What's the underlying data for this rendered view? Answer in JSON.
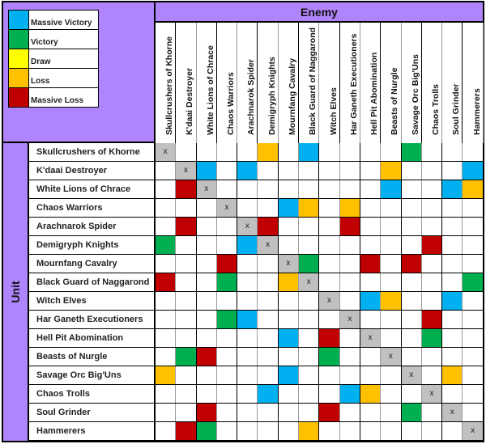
{
  "legend": [
    {
      "label": "Massive Victory",
      "color": "#00b0f0",
      "key": "MV"
    },
    {
      "label": "Victory",
      "color": "#00b050",
      "key": "V"
    },
    {
      "label": "Draw",
      "color": "#ffff00",
      "key": "D"
    },
    {
      "label": "Loss",
      "color": "#ffc000",
      "key": "L"
    },
    {
      "label": "Massive Loss",
      "color": "#c00000",
      "key": "ML"
    }
  ],
  "colors": {
    "header_bg": "#b084fc",
    "self_bg": "#c0c0c0",
    "empty_bg": "#ffffff"
  },
  "enemy_title": "Enemy",
  "unit_title": "Unit",
  "self_mark": "x",
  "units": [
    "Skullcrushers of Khorne",
    "K'daai Destroyer",
    "White Lions of Chrace",
    "Chaos Warriors",
    "Arachnarok Spider",
    "Demigryph Knights",
    "Mournfang Cavalry",
    "Black Guard of Naggarond",
    "Witch Elves",
    "Har Ganeth Executioners",
    "Hell Pit Abomination",
    "Beasts of Nurgle",
    "Savage Orc Big'Uns",
    "Chaos Trolls",
    "Soul Grinder",
    "Hammerers"
  ],
  "matrix": [
    [
      "X",
      "",
      "",
      "",
      "",
      "L",
      "",
      "MV",
      "",
      "",
      "",
      "",
      "V",
      "",
      "",
      ""
    ],
    [
      "",
      "X",
      "MV",
      "",
      "MV",
      "",
      "",
      "",
      "",
      "",
      "",
      "L",
      "",
      "",
      "",
      "MV"
    ],
    [
      "",
      "ML",
      "X",
      "",
      "",
      "",
      "",
      "",
      "",
      "",
      "",
      "MV",
      "",
      "",
      "MV",
      "L"
    ],
    [
      "",
      "",
      "",
      "X",
      "",
      "",
      "MV",
      "L",
      "",
      "L",
      "",
      "",
      "",
      "",
      "",
      ""
    ],
    [
      "",
      "ML",
      "",
      "",
      "X",
      "ML",
      "",
      "",
      "",
      "ML",
      "",
      "",
      "",
      "",
      "",
      ""
    ],
    [
      "V",
      "",
      "",
      "",
      "MV",
      "X",
      "",
      "",
      "",
      "",
      "",
      "",
      "",
      "ML",
      "",
      ""
    ],
    [
      "",
      "",
      "",
      "ML",
      "",
      "",
      "X",
      "V",
      "",
      "",
      "ML",
      "",
      "ML",
      "",
      "",
      ""
    ],
    [
      "ML",
      "",
      "",
      "V",
      "",
      "",
      "L",
      "X",
      "",
      "",
      "",
      "",
      "",
      "",
      "",
      "V"
    ],
    [
      "",
      "",
      "",
      "",
      "",
      "",
      "",
      "",
      "X",
      "",
      "MV",
      "L",
      "",
      "",
      "MV",
      ""
    ],
    [
      "",
      "",
      "",
      "V",
      "MV",
      "",
      "",
      "",
      "",
      "X",
      "",
      "",
      "",
      "ML",
      "",
      ""
    ],
    [
      "",
      "",
      "",
      "",
      "",
      "",
      "MV",
      "",
      "ML",
      "",
      "X",
      "",
      "",
      "V",
      "",
      ""
    ],
    [
      "",
      "V",
      "ML",
      "",
      "",
      "",
      "",
      "",
      "V",
      "",
      "",
      "X",
      "",
      "",
      "",
      ""
    ],
    [
      "L",
      "",
      "",
      "",
      "",
      "",
      "MV",
      "",
      "",
      "",
      "",
      "",
      "X",
      "",
      "L",
      ""
    ],
    [
      "",
      "",
      "",
      "",
      "",
      "MV",
      "",
      "",
      "",
      "MV",
      "L",
      "",
      "",
      "X",
      "",
      ""
    ],
    [
      "",
      "",
      "ML",
      "",
      "",
      "",
      "",
      "",
      "ML",
      "",
      "",
      "",
      "V",
      "",
      "X",
      ""
    ],
    [
      "",
      "ML",
      "V",
      "",
      "",
      "",
      "",
      "L",
      "",
      "",
      "",
      "",
      "",
      "",
      "",
      "X"
    ]
  ]
}
